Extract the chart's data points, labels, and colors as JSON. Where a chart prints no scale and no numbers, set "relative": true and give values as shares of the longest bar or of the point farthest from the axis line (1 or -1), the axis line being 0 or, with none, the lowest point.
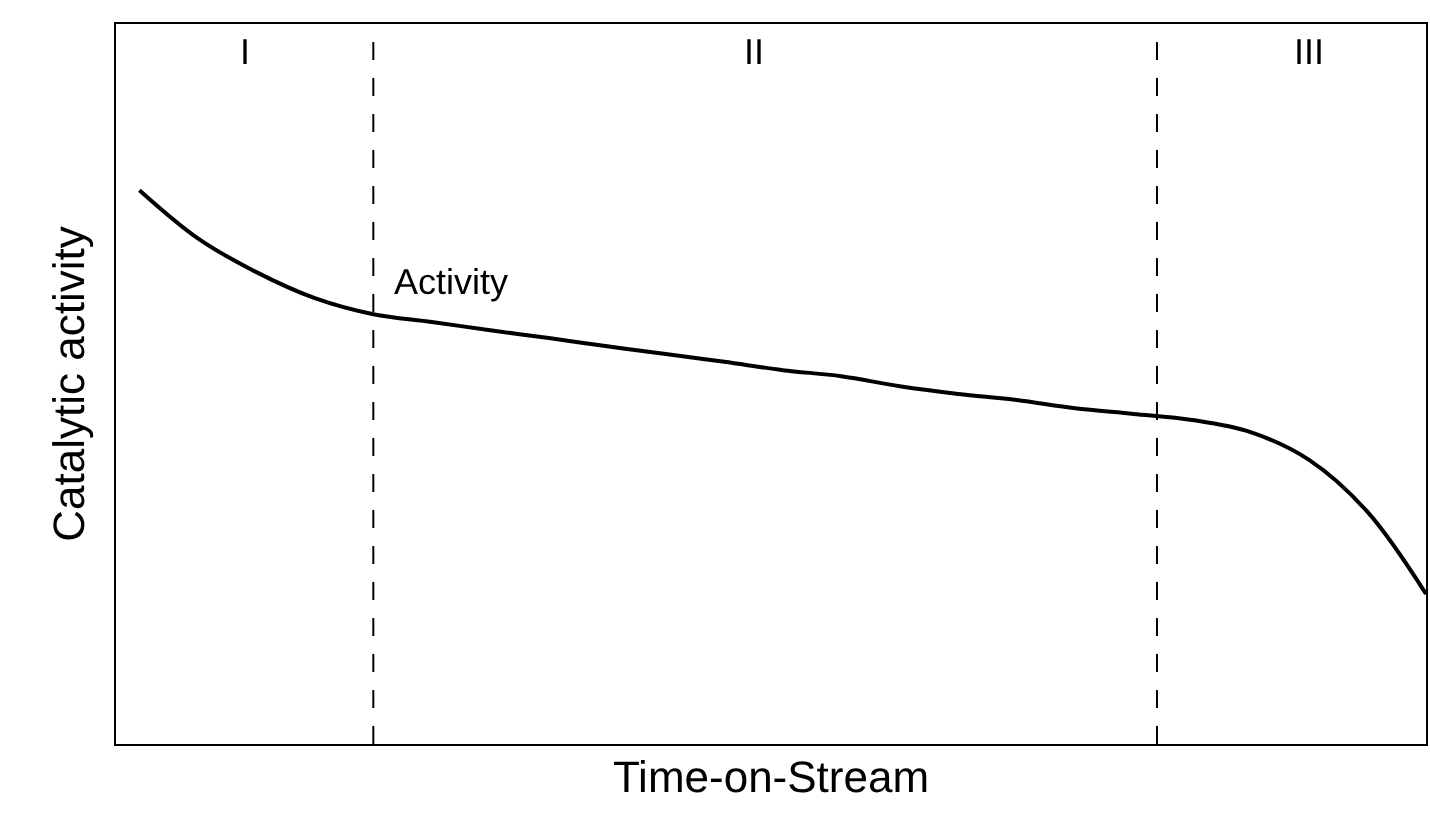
{
  "chart_data": {
    "type": "line",
    "relative": true,
    "xlabel": "Time-on-Stream",
    "ylabel": "Catalytic activity",
    "categories": [
      null,
      null,
      null,
      null,
      null,
      null,
      null,
      null,
      null,
      null,
      null,
      null,
      null,
      null,
      null,
      null,
      null,
      null,
      null,
      null,
      null,
      null,
      null
    ],
    "series": [
      {
        "name": "Activity",
        "color": "#000000",
        "values": [
          1.0,
          0.913,
          0.852,
          0.805,
          0.776,
          0.762,
          0.747,
          0.733,
          0.718,
          0.704,
          0.69,
          0.675,
          0.664,
          0.646,
          0.632,
          0.621,
          0.606,
          0.596,
          0.585,
          0.563,
          0.513,
          0.419,
          0.271
        ]
      }
    ],
    "annotations": [
      "I",
      "II",
      "III"
    ],
    "legend": false,
    "marker": "none",
    "line_style": "solid"
  }
}
